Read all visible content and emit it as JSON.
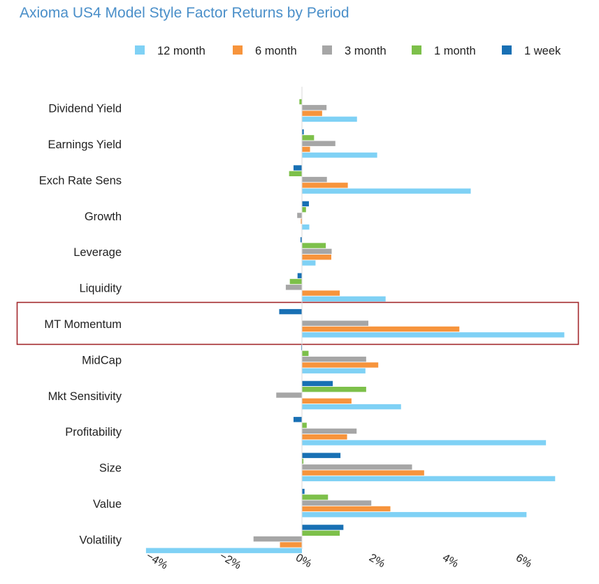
{
  "chart_data": {
    "type": "bar",
    "orientation": "horizontal",
    "title": "Axioma US4 Model Style Factor Returns by Period",
    "categories": [
      "Dividend Yield",
      "Earnings Yield",
      "Exch Rate Sens",
      "Growth",
      "Leverage",
      "Liquidity",
      "MT Momentum",
      "MidCap",
      "Mkt Sensitivity",
      "Profitability",
      "Size",
      "Value",
      "Volatility"
    ],
    "series": [
      {
        "name": "12 month",
        "color": "#7fd1f5",
        "values": [
          1.5,
          2.05,
          4.6,
          0.2,
          0.37,
          2.28,
          7.15,
          1.73,
          2.7,
          6.65,
          6.9,
          6.12,
          -4.25
        ]
      },
      {
        "name": "6 month",
        "color": "#f7943c",
        "values": [
          0.55,
          0.22,
          1.25,
          -0.03,
          0.8,
          1.03,
          4.29,
          2.08,
          1.35,
          1.23,
          3.33,
          2.41,
          -0.6
        ]
      },
      {
        "name": "3 month",
        "color": "#a6a6a6",
        "values": [
          0.67,
          0.91,
          0.68,
          -0.13,
          0.81,
          -0.44,
          1.81,
          1.75,
          -0.7,
          1.49,
          3.0,
          1.89,
          -1.32
        ]
      },
      {
        "name": "1 month",
        "color": "#7dc04a",
        "values": [
          -0.07,
          0.33,
          -0.35,
          0.11,
          0.65,
          -0.33,
          0.0,
          0.18,
          1.75,
          0.13,
          0.04,
          0.71,
          1.03
        ]
      },
      {
        "name": "1 week",
        "color": "#1870b4",
        "values": [
          0.0,
          0.05,
          -0.23,
          0.19,
          -0.04,
          -0.12,
          -0.62,
          -0.02,
          0.84,
          -0.23,
          1.05,
          0.07,
          1.13
        ]
      }
    ],
    "x_ticks": [
      "−4%",
      "−2%",
      "0%",
      "2%",
      "4%",
      "6%"
    ],
    "xlim": [
      -4.5,
      7.4
    ],
    "legend_position": "top",
    "highlight_category": "MT Momentum",
    "highlight_color": "#a3282c",
    "grid": false
  }
}
